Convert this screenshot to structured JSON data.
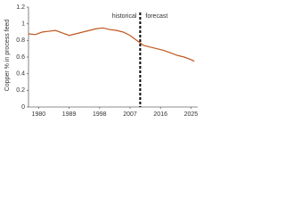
{
  "chart_data": {
    "type": "line",
    "y_label": "Copper % in process feed",
    "x": [
      1977,
      1979,
      1981,
      1983,
      1985,
      1987,
      1989,
      1991,
      1993,
      1995,
      1997,
      1999,
      2001,
      2003,
      2005,
      2007,
      2009,
      2010,
      2011,
      2013,
      2015,
      2017,
      2019,
      2021,
      2023,
      2025,
      2026
    ],
    "series": [
      {
        "name": "Copper %",
        "color": "#c0571f",
        "values": [
          0.88,
          0.87,
          0.9,
          0.91,
          0.92,
          0.89,
          0.86,
          0.88,
          0.9,
          0.92,
          0.94,
          0.95,
          0.93,
          0.92,
          0.9,
          0.86,
          0.8,
          0.77,
          0.74,
          0.72,
          0.7,
          0.68,
          0.65,
          0.62,
          0.6,
          0.57,
          0.55
        ]
      }
    ],
    "xlim": [
      1977,
      2027
    ],
    "xticks": [
      1980,
      1989,
      1998,
      2007,
      2016,
      2025
    ],
    "ylim": [
      0,
      1.2
    ],
    "yticks": [
      0,
      0.2,
      0.4,
      0.6,
      0.8,
      1,
      1.2
    ],
    "divider": 2010,
    "annotations": [
      "historical",
      "forecast"
    ]
  }
}
